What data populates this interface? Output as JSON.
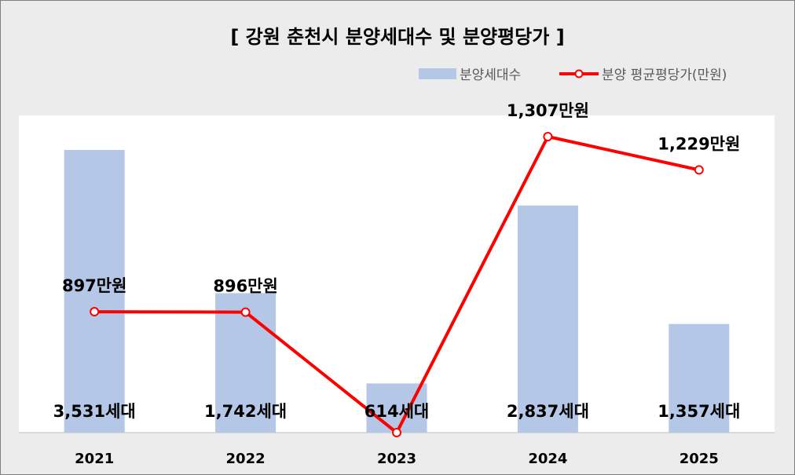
{
  "chart_data": {
    "type": "bar",
    "title": "[ 강원 춘천시 분양세대수 및 분양평당가 ]",
    "categories": [
      "2021",
      "2022",
      "2023",
      "2024",
      "2025"
    ],
    "series": [
      {
        "name": "분양세대수",
        "type": "bar",
        "axis": "left",
        "color": "#b4c7e7",
        "values": [
          3531,
          1742,
          614,
          2837,
          1357
        ],
        "labels": [
          "3,531세대",
          "1,742세대",
          "614세대",
          "2,837세대",
          "1,357세대"
        ]
      },
      {
        "name": "분양 평균평당가(만원)",
        "type": "line",
        "axis": "right",
        "color": "#ff0000",
        "values": [
          897,
          896,
          614,
          1307,
          1229
        ],
        "labels": [
          "897만원",
          "896만원",
          "",
          "1,307만원",
          "1,229만원"
        ]
      }
    ],
    "legend_position": "top-right",
    "grid": false,
    "left_axis_range": [
      0,
      4000
    ],
    "right_axis_range": [
      600,
      1330
    ]
  }
}
